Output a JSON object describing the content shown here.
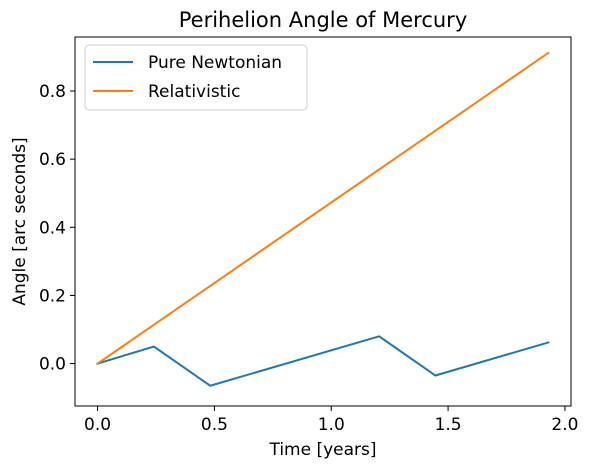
{
  "chart_data": {
    "type": "line",
    "title": "Perihelion Angle of Mercury",
    "xlabel": "Time [years]",
    "ylabel": "Angle [arc seconds]",
    "xlim": [
      -0.0966,
      2.026
    ],
    "ylim": [
      -0.1245,
      0.9585
    ],
    "x_ticks": [
      {
        "value": 0.0,
        "label": "0.0"
      },
      {
        "value": 0.5,
        "label": "0.5"
      },
      {
        "value": 1.0,
        "label": "1.0"
      },
      {
        "value": 1.5,
        "label": "1.5"
      },
      {
        "value": 2.0,
        "label": "2.0"
      }
    ],
    "y_ticks": [
      {
        "value": 0.0,
        "label": "0.0"
      },
      {
        "value": 0.2,
        "label": "0.2"
      },
      {
        "value": 0.4,
        "label": "0.4"
      },
      {
        "value": 0.6,
        "label": "0.6"
      },
      {
        "value": 0.8,
        "label": "0.8"
      }
    ],
    "grid": false,
    "legend_position": "top-left",
    "series": [
      {
        "name": "Pure Newtonian",
        "color": "#1f77b4",
        "points": [
          {
            "x": 0.0,
            "y": 0.0
          },
          {
            "x": 0.241,
            "y": 0.05
          },
          {
            "x": 0.482,
            "y": -0.065
          },
          {
            "x": 1.205,
            "y": 0.08
          },
          {
            "x": 1.446,
            "y": -0.035
          },
          {
            "x": 1.929,
            "y": 0.062
          }
        ]
      },
      {
        "name": "Relativistic",
        "color": "#ff7f0e",
        "points": [
          {
            "x": 0.0,
            "y": 0.0
          },
          {
            "x": 1.929,
            "y": 0.912
          }
        ]
      }
    ]
  }
}
